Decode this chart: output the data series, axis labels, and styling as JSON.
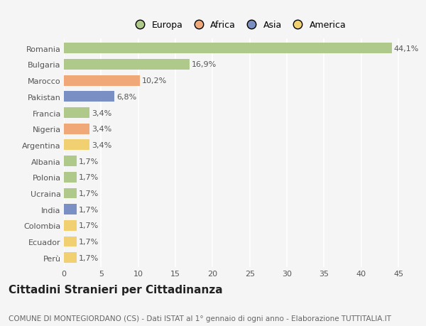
{
  "countries": [
    "Romania",
    "Bulgaria",
    "Marocco",
    "Pakistan",
    "Francia",
    "Nigeria",
    "Argentina",
    "Albania",
    "Polonia",
    "Ucraina",
    "India",
    "Colombia",
    "Ecuador",
    "Perù"
  ],
  "values": [
    44.1,
    16.9,
    10.2,
    6.8,
    3.4,
    3.4,
    3.4,
    1.7,
    1.7,
    1.7,
    1.7,
    1.7,
    1.7,
    1.7
  ],
  "labels": [
    "44,1%",
    "16,9%",
    "10,2%",
    "6,8%",
    "3,4%",
    "3,4%",
    "3,4%",
    "1,7%",
    "1,7%",
    "1,7%",
    "1,7%",
    "1,7%",
    "1,7%",
    "1,7%"
  ],
  "colors": [
    "#aec98a",
    "#aec98a",
    "#f0a878",
    "#7a8fc4",
    "#aec98a",
    "#f0a878",
    "#f0d070",
    "#aec98a",
    "#aec98a",
    "#aec98a",
    "#7a8fc4",
    "#f0d070",
    "#f0d070",
    "#f0d070"
  ],
  "legend_labels": [
    "Europa",
    "Africa",
    "Asia",
    "America"
  ],
  "legend_colors": [
    "#aec98a",
    "#f0a878",
    "#7a8fc4",
    "#f0d070"
  ],
  "xlim": [
    0,
    47
  ],
  "xticks": [
    0,
    5,
    10,
    15,
    20,
    25,
    30,
    35,
    40,
    45
  ],
  "title": "Cittadini Stranieri per Cittadinanza",
  "subtitle": "COMUNE DI MONTEGIORDANO (CS) - Dati ISTAT al 1° gennaio di ogni anno - Elaborazione TUTTITALIA.IT",
  "bg_color": "#f5f5f5",
  "bar_height": 0.65,
  "grid_color": "#ffffff",
  "label_fontsize": 8,
  "tick_fontsize": 8,
  "title_fontsize": 11,
  "subtitle_fontsize": 7.5
}
